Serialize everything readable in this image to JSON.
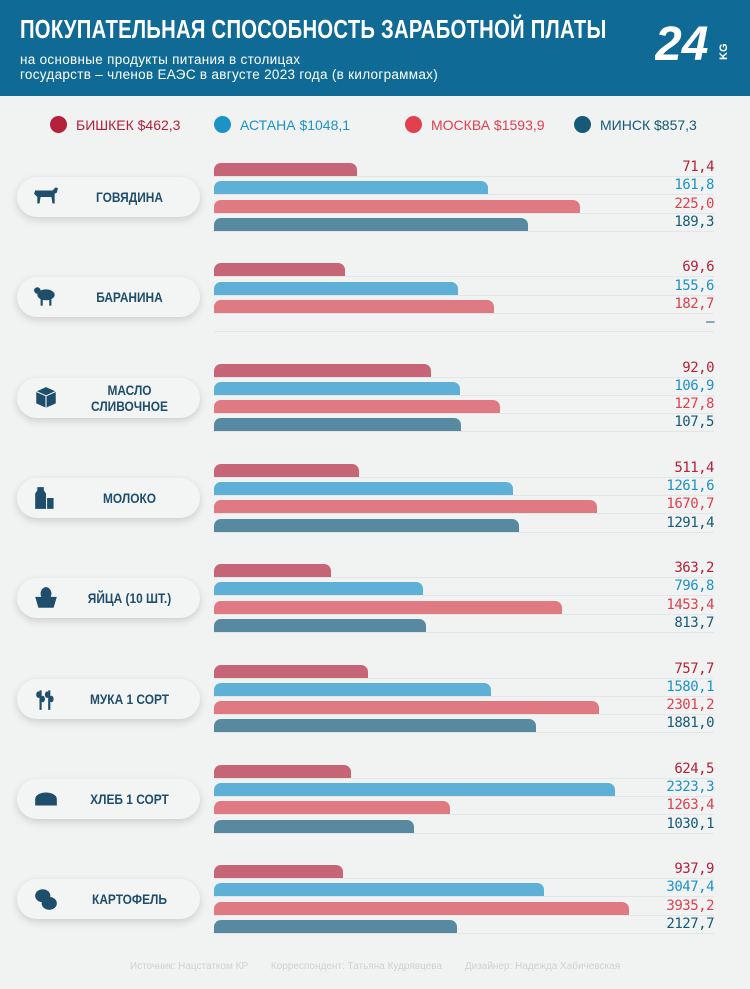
{
  "header": {
    "title": "ПОКУПАТЕЛЬНАЯ СПОСОБНОСТЬ ЗАРАБОТНОЙ ПЛАТЫ",
    "subtitle_line1": "на основные продукты питания в столицах",
    "subtitle_line2": "государств – членов ЕАЭС в августе 2023 года (в килограммах)",
    "logo": "24.kg"
  },
  "chart_data": {
    "type": "bar",
    "orientation": "horizontal",
    "title": "ПОКУПАТЕЛЬНАЯ СПОСОБНОСТЬ ЗАРАБОТНОЙ ПЛАТЫ",
    "unit": "кг",
    "legend_position": "top",
    "categories": [
      "ГОВЯДИНА",
      "БАРАНИНА",
      "МАСЛО СЛИВОЧНОЕ",
      "МОЛОКО",
      "ЯЙЦА (10 ШТ.)",
      "МУКА 1 СОРТ",
      "ХЛЕБ 1 СОРТ",
      "КАРТОФЕЛЬ"
    ],
    "category_icons": [
      "cow-icon",
      "sheep-icon",
      "butter-cube-icon",
      "milk-bottle-icon",
      "egg-basket-icon",
      "wheat-icon",
      "bread-icon",
      "potato-icon"
    ],
    "series": [
      {
        "name": "БИШКЕК $462,3",
        "bar_color": "#c66575",
        "text_color": "#b5213b",
        "values": [
          71.4,
          69.6,
          92.0,
          511.4,
          363.2,
          757.7,
          624.5,
          937.9
        ],
        "labels": [
          "71,4",
          "69,6",
          "92,0",
          "511,4",
          "363,2",
          "757,7",
          "624,5",
          "937,9"
        ]
      },
      {
        "name": "АСТАНА $1048,1",
        "bar_color": "#5fb0d6",
        "text_color": "#1c93c7",
        "values": [
          161.8,
          155.6,
          106.9,
          1261.6,
          796.8,
          1580.1,
          2323.3,
          3047.4
        ],
        "labels": [
          "161,8",
          "155,6",
          "106,9",
          "1261,6",
          "796,8",
          "1580,1",
          "2323,3",
          "3047,4"
        ]
      },
      {
        "name": "МОСКВА $1593,9",
        "bar_color": "#e07a82",
        "text_color": "#e04050",
        "values": [
          225.0,
          182.7,
          127.8,
          1670.7,
          1453.4,
          2301.2,
          1263.4,
          3935.2
        ],
        "labels": [
          "225,0",
          "182,7",
          "127,8",
          "1670,7",
          "1453,4",
          "2301,2",
          "1263,4",
          "3935,2"
        ]
      },
      {
        "name": "МИНСК $857,3",
        "bar_color": "#578aa0",
        "text_color": "#155a78",
        "values": [
          189.3,
          null,
          107.5,
          1291.4,
          813.7,
          1881.0,
          1030.1,
          2127.7
        ],
        "labels": [
          "189,3",
          "–",
          "107,5",
          "1291,4",
          "813,7",
          "1881,0",
          "1030,1",
          "2127,7"
        ]
      }
    ],
    "grid": false
  },
  "footer": {
    "source": "Источник: Нацстатком КР",
    "correspondent": "Корреспондент: Татьяна Кудрявцева",
    "designer": "Дизайнер: Надежда Хабичевская"
  }
}
